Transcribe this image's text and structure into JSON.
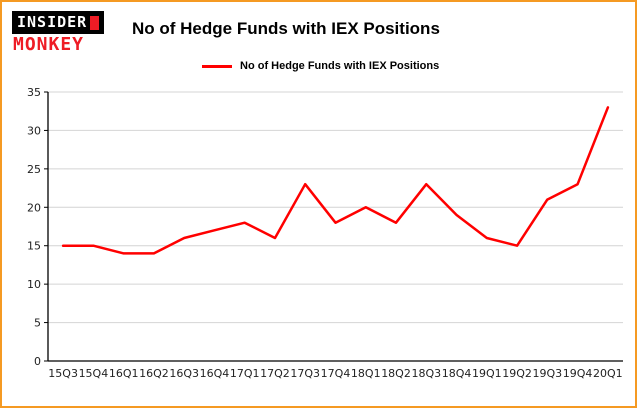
{
  "logo": {
    "top": "INSIDER",
    "bottom": "MONKEY"
  },
  "header": {
    "title": "No of Hedge Funds with IEX Positions"
  },
  "legend": {
    "label": "No of Hedge Funds with IEX Positions"
  },
  "colors": {
    "border": "#f59a23",
    "line": "#ff0000",
    "grid": "#d4d4d4",
    "axis": "#000000",
    "logo_red": "#ee1c25"
  },
  "chart_data": {
    "type": "line",
    "title": "No of Hedge Funds with IEX Positions",
    "categories": [
      "15Q3",
      "15Q4",
      "16Q1",
      "16Q2",
      "16Q3",
      "16Q4",
      "17Q1",
      "17Q2",
      "17Q3",
      "17Q4",
      "18Q1",
      "18Q2",
      "18Q3",
      "18Q4",
      "19Q1",
      "19Q2",
      "19Q3",
      "19Q4",
      "20Q1"
    ],
    "values": [
      15,
      15,
      14,
      14,
      16,
      17,
      18,
      16,
      23,
      18,
      20,
      18,
      23,
      19,
      16,
      15,
      21,
      23,
      33
    ],
    "xlabel": "",
    "ylabel": "",
    "ylim": [
      0,
      35
    ],
    "ytick_step": 5,
    "grid": true,
    "legend_position": "top-left"
  }
}
